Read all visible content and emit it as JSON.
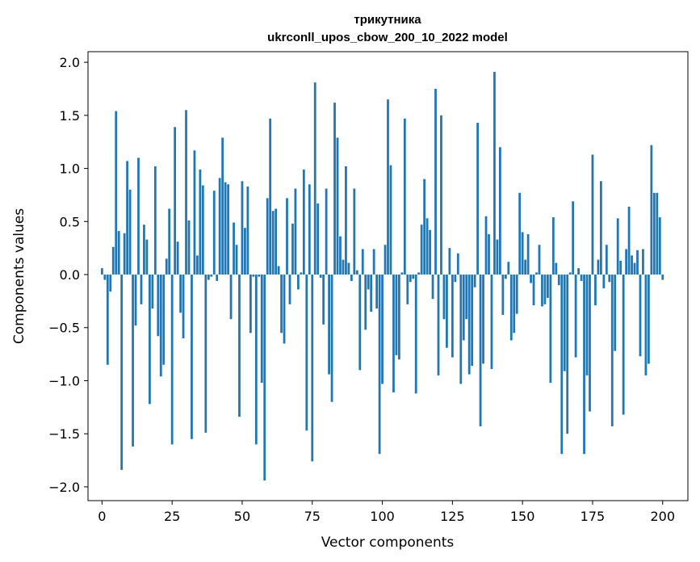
{
  "chart_data": {
    "type": "bar",
    "title_line1": "трикутника",
    "title_line2": "ukrconll_upos_cbow_200_10_2022 model",
    "xlabel": "Vector components",
    "ylabel": "Components values",
    "xlim": [
      -5,
      209
    ],
    "ylim": [
      -2.13,
      2.1
    ],
    "xticks": [
      0,
      25,
      50,
      75,
      100,
      125,
      150,
      175,
      200
    ],
    "yticks": [
      2.0,
      1.5,
      1.0,
      0.5,
      0.0,
      -0.5,
      -1.0,
      -1.5,
      -2.0
    ],
    "xtick_labels": [
      "0",
      "25",
      "50",
      "75",
      "100",
      "125",
      "150",
      "175",
      "200"
    ],
    "ytick_labels": [
      "2.0",
      "1.5",
      "1.0",
      "0.5",
      "0.0",
      "−0.5",
      "−1.0",
      "−1.5",
      "−2.0"
    ],
    "bar_color": "#1f77b4",
    "values": [
      0.06,
      -0.05,
      -0.85,
      -0.16,
      0.26,
      1.54,
      0.41,
      -1.84,
      0.39,
      1.07,
      0.8,
      -1.62,
      -0.48,
      1.1,
      -0.28,
      0.47,
      0.33,
      -1.22,
      -0.32,
      1.02,
      -0.58,
      -0.96,
      -0.85,
      0.15,
      0.62,
      -1.6,
      1.39,
      0.31,
      -0.36,
      -0.6,
      1.55,
      0.51,
      -1.55,
      1.17,
      0.18,
      0.99,
      0.84,
      -1.49,
      -0.05,
      -0.02,
      0.79,
      -0.06,
      0.91,
      1.29,
      0.87,
      0.85,
      -0.42,
      0.49,
      0.28,
      -1.34,
      0.88,
      0.44,
      0.83,
      -0.55,
      -0.02,
      -1.6,
      -0.02,
      -1.02,
      -1.94,
      0.72,
      1.47,
      0.6,
      0.62,
      0.08,
      -0.55,
      -0.65,
      0.72,
      -0.28,
      0.48,
      0.81,
      -0.14,
      0.02,
      0.99,
      -1.47,
      0.85,
      -1.76,
      1.81,
      0.67,
      -0.03,
      -0.47,
      0.81,
      -0.94,
      -1.2,
      1.62,
      1.29,
      0.36,
      0.14,
      1.02,
      0.11,
      -0.06,
      0.81,
      0.04,
      -0.9,
      0.24,
      -0.52,
      -0.14,
      -0.35,
      0.24,
      -0.32,
      -1.69,
      -1.03,
      0.28,
      1.65,
      1.03,
      -1.11,
      -0.76,
      -0.8,
      0.02,
      1.47,
      -0.28,
      -0.07,
      -0.04,
      -1.12,
      0.02,
      0.47,
      0.9,
      0.53,
      0.42,
      -0.23,
      1.75,
      -0.95,
      1.5,
      -0.42,
      -0.69,
      0.25,
      -0.78,
      -0.07,
      0.2,
      -1.03,
      -0.62,
      -0.42,
      -0.94,
      -0.86,
      -0.12,
      1.43,
      -1.43,
      -0.84,
      0.55,
      0.38,
      -0.89,
      1.91,
      0.33,
      1.2,
      -0.38,
      -0.04,
      0.12,
      -0.62,
      -0.55,
      -0.37,
      0.77,
      0.4,
      0.14,
      0.38,
      -0.08,
      -0.29,
      0.02,
      0.28,
      -0.3,
      -0.28,
      -0.22,
      -1.02,
      0.54,
      0.11,
      -0.1,
      -1.69,
      -0.91,
      -1.5,
      0.02,
      0.69,
      -0.78,
      0.06,
      -0.06,
      -1.69,
      -0.95,
      -1.29,
      1.13,
      -0.29,
      0.14,
      0.88,
      -0.13,
      0.28,
      -0.07,
      -1.43,
      -0.72,
      0.53,
      0.13,
      -1.32,
      0.24,
      0.64,
      0.18,
      0.11,
      0.23,
      -0.77,
      0.24,
      -0.95,
      -0.84,
      1.22,
      0.77,
      0.77,
      0.54,
      -0.05
    ]
  }
}
